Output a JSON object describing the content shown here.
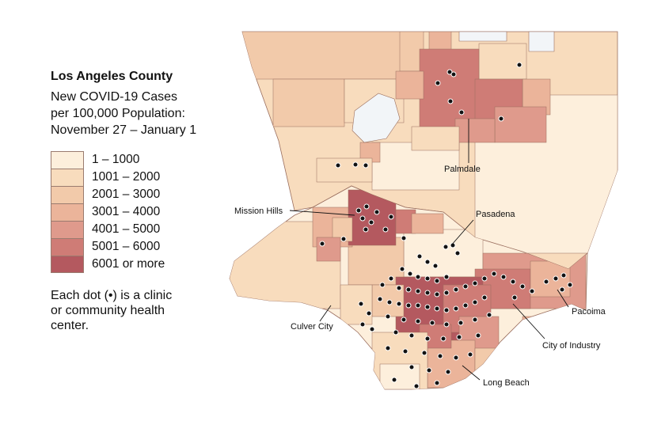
{
  "legend": {
    "title": "Los Angeles County",
    "subtitle_lines": [
      "New COVID-19 Cases",
      "per 100,000 Population:",
      "November 27 – January 1"
    ],
    "classes": [
      {
        "label": "1 – 1000",
        "color": "#fdefdc"
      },
      {
        "label": "1001 – 2000",
        "color": "#f8dcbd"
      },
      {
        "label": "2001 – 3000",
        "color": "#f2caaa"
      },
      {
        "label": "3001 – 4000",
        "color": "#ebb49a"
      },
      {
        "label": "4001 – 5000",
        "color": "#df9a8c"
      },
      {
        "label": "5001 – 6000",
        "color": "#cf7c76"
      },
      {
        "label": "6001 or more",
        "color": "#b4595f"
      }
    ],
    "note_lines": [
      "Each dot (•) is a clinic",
      "or community health",
      "center."
    ]
  },
  "map": {
    "nodata_color": "#f2f5f8",
    "labels": [
      {
        "id": "palmdale",
        "text": "Palmdale"
      },
      {
        "id": "mission-hills",
        "text": "Mission Hills"
      },
      {
        "id": "pasadena",
        "text": "Pasadena"
      },
      {
        "id": "culver-city",
        "text": "Culver City"
      },
      {
        "id": "pacoima",
        "text": "Pacoima"
      },
      {
        "id": "city-of-industry",
        "text": "City of Industry"
      },
      {
        "id": "long-beach",
        "text": "Long Beach"
      }
    ]
  }
}
